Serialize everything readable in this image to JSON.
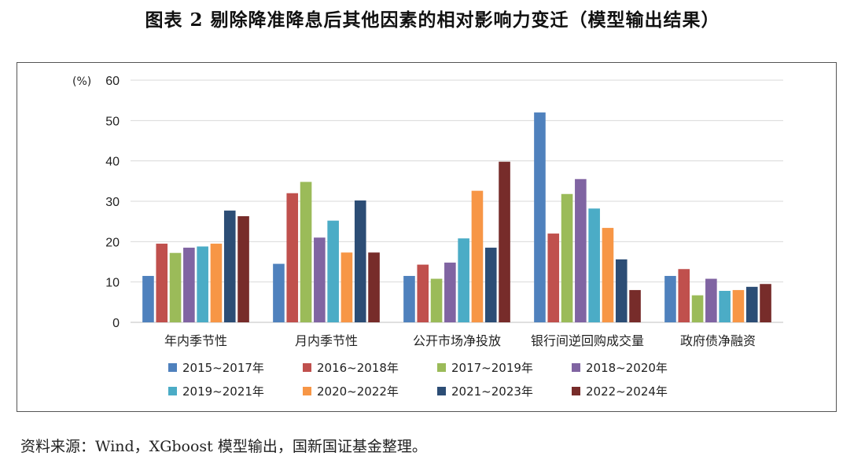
{
  "title": "图表 2  剔除降准降息后其他因素的相对影响力变迁（模型输出结果）",
  "source": "资料来源：Wind，XGboost 模型输出，国新国证基金整理。",
  "chart_data": {
    "type": "bar",
    "ylabel": "(%)",
    "ylim": [
      0,
      60
    ],
    "yticks": [
      0,
      10,
      20,
      30,
      40,
      50,
      60
    ],
    "grid": true,
    "legend": "bottom",
    "categories": [
      "年内季节性",
      "月内季节性",
      "公开市场净投放",
      "银行间逆回购成交量",
      "政府债净融资"
    ],
    "series": [
      {
        "name": "2015~2017年",
        "color": "#4f81bd",
        "values": [
          11.5,
          14.5,
          11.5,
          52.0,
          11.5
        ]
      },
      {
        "name": "2016~2018年",
        "color": "#c0504d",
        "values": [
          19.5,
          32.0,
          14.3,
          22.0,
          13.2
        ]
      },
      {
        "name": "2017~2019年",
        "color": "#9bbb59",
        "values": [
          17.2,
          34.8,
          10.8,
          31.8,
          6.7
        ]
      },
      {
        "name": "2018~2020年",
        "color": "#8064a2",
        "values": [
          18.5,
          21.0,
          14.8,
          35.5,
          10.8
        ]
      },
      {
        "name": "2019~2021年",
        "color": "#4bacc6",
        "values": [
          18.8,
          25.2,
          20.8,
          28.2,
          7.8
        ]
      },
      {
        "name": "2020~2022年",
        "color": "#f79646",
        "values": [
          19.5,
          17.3,
          32.6,
          23.4,
          8.0
        ]
      },
      {
        "name": "2021~2023年",
        "color": "#2c4d75",
        "values": [
          27.7,
          30.2,
          18.5,
          15.6,
          8.8
        ]
      },
      {
        "name": "2022~2024年",
        "color": "#772c2a",
        "values": [
          26.3,
          17.3,
          39.8,
          8.0,
          9.5
        ]
      }
    ]
  }
}
